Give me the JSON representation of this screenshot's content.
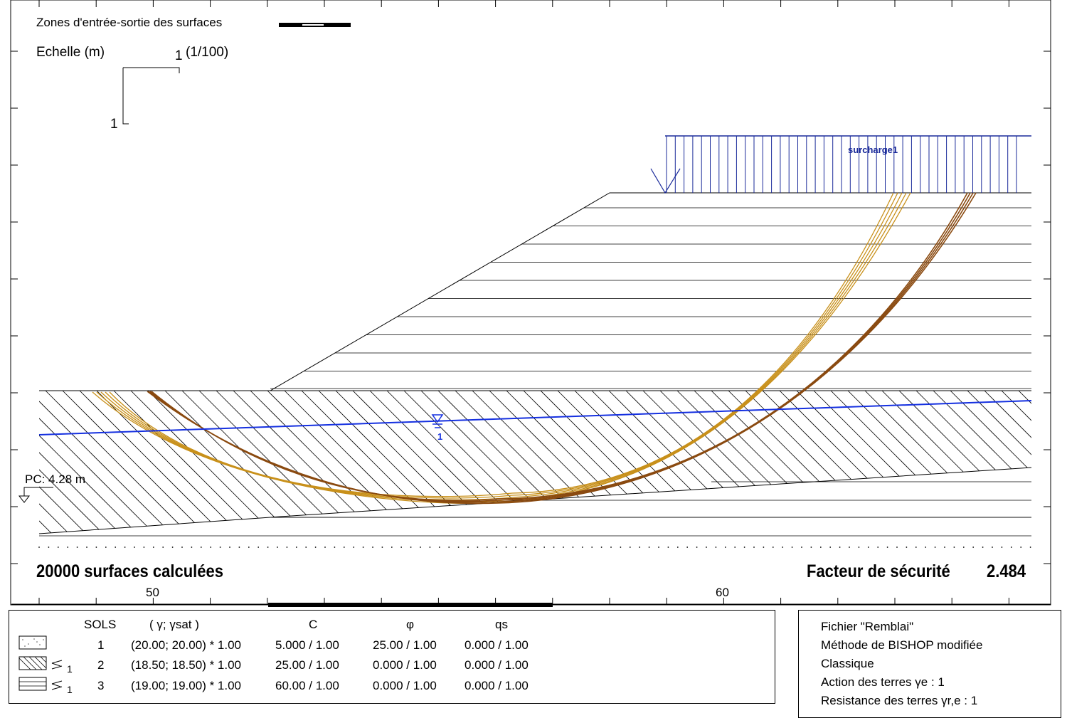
{
  "diagram": {
    "legend_zones": "Zones d'entrée-sortie des surfaces",
    "scale_label": "Echelle (m)",
    "scale_ratio": "(1/100)",
    "scale_h_value": "1",
    "scale_v_value": "1",
    "surcharge_label": "surcharge1",
    "water_table_index": "1",
    "pc_label": "PC: 4.28 m",
    "surfaces_count": "20000 surfaces calculées",
    "safety_factor_label": "Facteur de sécurité",
    "safety_factor_value": "2.484",
    "x_ticks": [
      "50",
      "60"
    ]
  },
  "soils_table": {
    "headers": [
      "SOLS",
      "( γ; γsat )",
      "C",
      "φ",
      "qs"
    ],
    "rows": [
      {
        "id": "1",
        "gamma": "(20.00; 20.00) * 1.00",
        "c": "5.000 / 1.00",
        "phi": "25.00 / 1.00",
        "qs": "0.000 / 1.00",
        "water_sub": ""
      },
      {
        "id": "2",
        "gamma": "(18.50; 18.50) * 1.00",
        "c": "25.00 / 1.00",
        "phi": "0.000 / 1.00",
        "qs": "0.000 / 1.00",
        "water_sub": "1"
      },
      {
        "id": "3",
        "gamma": "(19.00; 19.00) * 1.00",
        "c": "60.00 / 1.00",
        "phi": "0.000 / 1.00",
        "qs": "0.000 / 1.00",
        "water_sub": "1"
      }
    ]
  },
  "info_panel": {
    "file": "Fichier \"Remblai\"",
    "method": "Méthode de BISHOP modifiée",
    "mode": "Classique",
    "action": "Action des terres γe  : 1",
    "resistance": "Resistance des terres γr,e  : 1"
  },
  "colors": {
    "water": "#1530e0",
    "surcharge": "#1a2a9a",
    "surface_light": "#c8901a",
    "surface_dark": "#8a4a10"
  }
}
